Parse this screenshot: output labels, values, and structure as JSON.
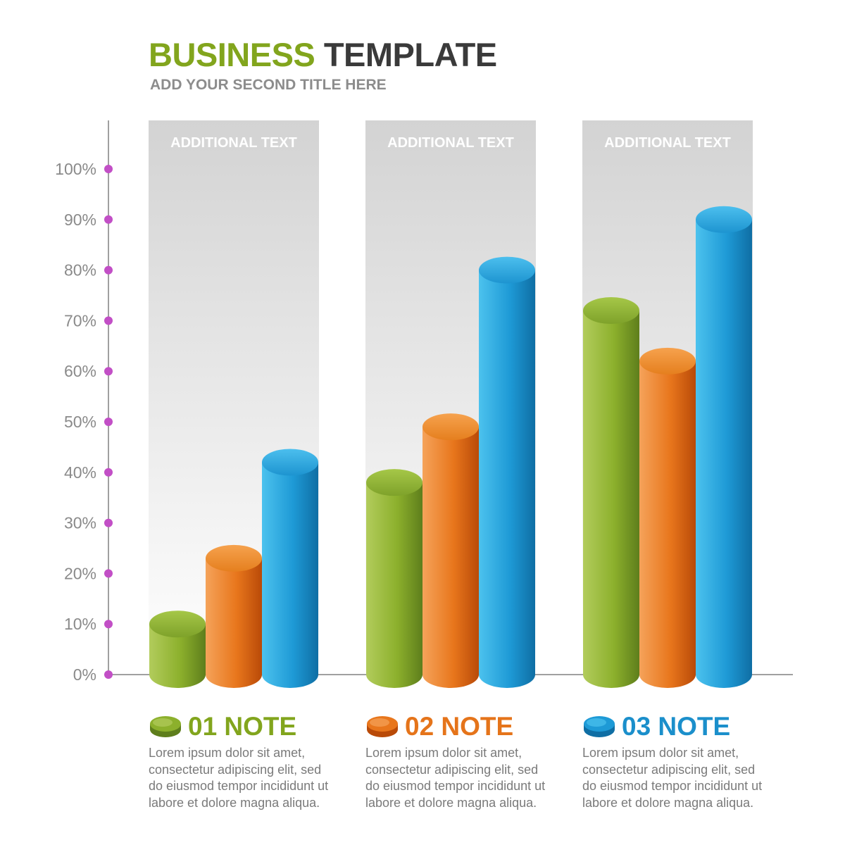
{
  "header": {
    "title_word1": "BUSINESS",
    "title_word2": "TEMPLATE",
    "subtitle": "ADD YOUR SECOND TITLE HERE"
  },
  "colors": {
    "green": "#8cb02c",
    "orange": "#e8761c",
    "blue": "#1e9ad6",
    "axis_dot": "#c24fc6",
    "panel_top": "#d3d3d3",
    "title_green": "#82a51d",
    "title_dark": "#3a3a3a"
  },
  "chart_data": {
    "type": "bar",
    "style": "3d-cylinder",
    "ylim": [
      0,
      100
    ],
    "yticks": [
      "0%",
      "10%",
      "20%",
      "30%",
      "40%",
      "50%",
      "60%",
      "70%",
      "80%",
      "90%",
      "100%"
    ],
    "categories": [
      "ADDITIONAL TEXT",
      "ADDITIONAL TEXT",
      "ADDITIONAL TEXT"
    ],
    "series": [
      {
        "name": "01 NOTE",
        "color": "green",
        "values": [
          10,
          38,
          72
        ]
      },
      {
        "name": "02 NOTE",
        "color": "orange",
        "values": [
          23,
          49,
          62
        ]
      },
      {
        "name": "03 NOTE",
        "color": "blue",
        "values": [
          42,
          80,
          90
        ]
      }
    ],
    "grid": false,
    "legend": "bottom"
  },
  "notes": [
    {
      "label": "01 NOTE",
      "color": "green",
      "text": "Lorem ipsum dolor sit amet, consectetur adipiscing elit, sed do eiusmod tempor incididunt ut labore et dolore magna aliqua."
    },
    {
      "label": "02 NOTE",
      "color": "orange",
      "text": "Lorem ipsum dolor sit amet, consectetur adipiscing elit, sed do eiusmod tempor incididunt ut labore et dolore magna aliqua."
    },
    {
      "label": "03 NOTE",
      "color": "blue",
      "text": "Lorem ipsum dolor sit amet, consectetur adipiscing elit, sed do eiusmod tempor incididunt ut labore et dolore magna aliqua."
    }
  ]
}
